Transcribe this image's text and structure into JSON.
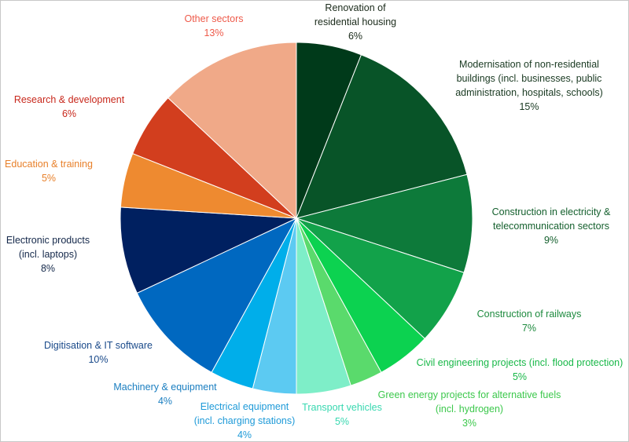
{
  "chart_data": {
    "type": "pie",
    "title": "",
    "start_angle_deg": 0,
    "direction": "clockwise",
    "slices": [
      {
        "lines": [
          "Renovation of",
          "residential housing"
        ],
        "value": 6,
        "value_label": "6%",
        "color": "#003a1a",
        "text_color": "#1a2a1a"
      },
      {
        "lines": [
          "Modernisation of non-residential",
          "buildings (incl. businesses, public",
          "administration, hospitals, schools)"
        ],
        "value": 15,
        "value_label": "15%",
        "color": "#085428",
        "text_color": "#1a3a22"
      },
      {
        "lines": [
          "Construction in electricity &",
          "telecommunication sectors"
        ],
        "value": 9,
        "value_label": "9%",
        "color": "#0d7a3a",
        "text_color": "#15602e"
      },
      {
        "lines": [
          "Construction of railways"
        ],
        "value": 7,
        "value_label": "7%",
        "color": "#12a24a",
        "text_color": "#1d8a3e"
      },
      {
        "lines": [
          "Civil engineering projects (incl. flood protection)"
        ],
        "value": 5,
        "value_label": "5%",
        "color": "#0cd250",
        "text_color": "#18b848"
      },
      {
        "lines": [
          "Green energy projects for alternative fuels",
          "(incl. hydrogen)"
        ],
        "value": 3,
        "value_label": "3%",
        "color": "#5ada6c",
        "text_color": "#3cc84c"
      },
      {
        "lines": [
          "Transport vehicles"
        ],
        "value": 5,
        "value_label": "5%",
        "color": "#7eeec8",
        "text_color": "#38d8b0"
      },
      {
        "lines": [
          "Electrical equipment",
          "(incl. charging stations)"
        ],
        "value": 4,
        "value_label": "4%",
        "color": "#5ccaf2",
        "text_color": "#1e9ad8"
      },
      {
        "lines": [
          "Machinery & equipment"
        ],
        "value": 4,
        "value_label": "4%",
        "color": "#00aeea",
        "text_color": "#1a7ec0"
      },
      {
        "lines": [
          "Digitisation & IT software"
        ],
        "value": 10,
        "value_label": "10%",
        "color": "#0068c0",
        "text_color": "#1a4a8a"
      },
      {
        "lines": [
          "Electronic products",
          "(incl. laptops)"
        ],
        "value": 8,
        "value_label": "8%",
        "color": "#002060",
        "text_color": "#14284a"
      },
      {
        "lines": [
          "Education & training"
        ],
        "value": 5,
        "value_label": "5%",
        "color": "#ee8a30",
        "text_color": "#e8802a"
      },
      {
        "lines": [
          "Research & development"
        ],
        "value": 6,
        "value_label": "6%",
        "color": "#d23e1e",
        "text_color": "#c8281c"
      },
      {
        "lines": [
          "Other sectors"
        ],
        "value": 13,
        "value_label": "13%",
        "color": "#f0a988",
        "text_color": "#ee5a4a"
      }
    ]
  }
}
